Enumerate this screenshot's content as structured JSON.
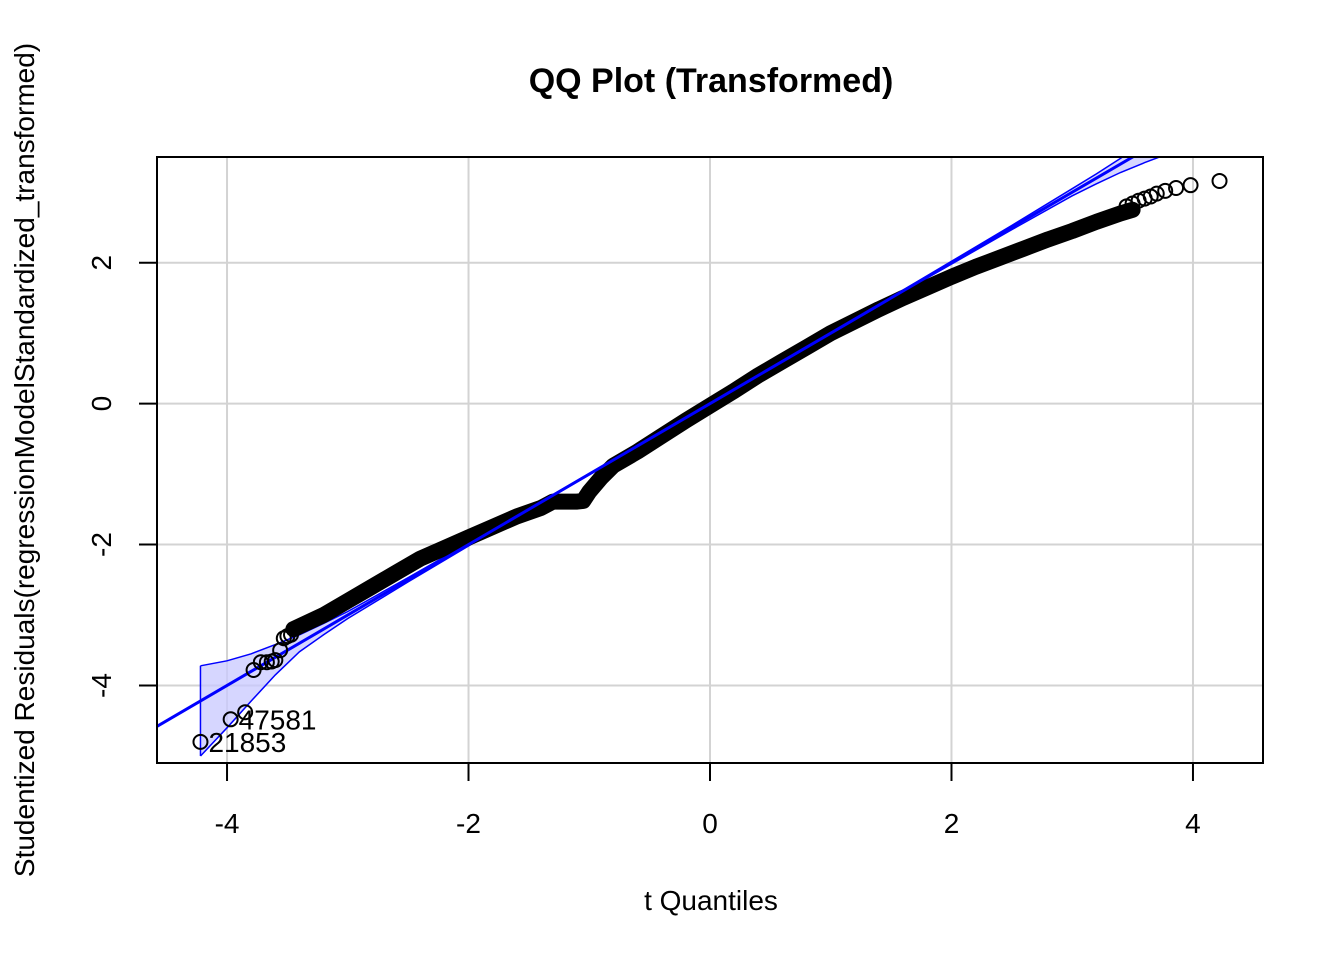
{
  "chart_data": {
    "type": "scatter",
    "title": "QQ Plot (Transformed)",
    "xlabel": "t Quantiles",
    "ylabel": "Studentized Residuals(regressionModelStandardized_transformed)",
    "xlim": [
      -4.58,
      4.58
    ],
    "ylim": [
      -5.1,
      3.5
    ],
    "xticks": [
      -4,
      -2,
      0,
      2,
      4
    ],
    "yticks": [
      -4,
      -2,
      0,
      2
    ],
    "grid": true,
    "reference_line": {
      "intercept": 0.0,
      "slope": 1.0
    },
    "confidence_band": {
      "x": [
        -4.22,
        -4.0,
        -3.8,
        -3.6,
        -3.4,
        -3.2,
        -3.0,
        -2.5,
        -2.0,
        -1.5,
        -1.0,
        -0.5,
        0.0,
        0.5,
        1.0,
        1.5,
        2.0,
        2.5,
        3.0,
        3.2,
        3.4,
        3.6,
        3.8
      ],
      "upper": [
        -3.72,
        -3.65,
        -3.55,
        -3.42,
        -3.28,
        -3.12,
        -2.95,
        -2.47,
        -1.98,
        -1.49,
        -0.99,
        -0.49,
        0.01,
        0.51,
        1.01,
        1.51,
        2.02,
        2.53,
        3.05,
        3.26,
        3.48,
        3.72,
        3.98
      ],
      "lower": [
        -5.0,
        -4.6,
        -4.22,
        -3.85,
        -3.52,
        -3.28,
        -3.05,
        -2.53,
        -2.02,
        -1.51,
        -1.01,
        -0.51,
        -0.01,
        0.49,
        0.99,
        1.49,
        1.98,
        2.47,
        2.95,
        3.12,
        3.28,
        3.42,
        3.55
      ]
    },
    "dense_curve": {
      "x": [
        -3.45,
        -3.2,
        -3.0,
        -2.8,
        -2.6,
        -2.4,
        -2.2,
        -2.0,
        -1.8,
        -1.6,
        -1.4,
        -1.3,
        -1.2,
        -1.1,
        -1.05,
        -1.0,
        -0.9,
        -0.8,
        -0.6,
        -0.4,
        -0.2,
        0.0,
        0.2,
        0.4,
        0.6,
        0.8,
        1.0,
        1.2,
        1.4,
        1.6,
        1.8,
        2.0,
        2.2,
        2.4,
        2.6,
        2.8,
        3.0,
        3.2,
        3.4,
        3.5
      ],
      "y": [
        -3.2,
        -3.0,
        -2.8,
        -2.6,
        -2.4,
        -2.2,
        -2.05,
        -1.9,
        -1.75,
        -1.6,
        -1.48,
        -1.39,
        -1.39,
        -1.39,
        -1.38,
        -1.25,
        -1.05,
        -0.88,
        -0.68,
        -0.46,
        -0.24,
        -0.03,
        0.18,
        0.4,
        0.6,
        0.8,
        1.0,
        1.17,
        1.34,
        1.5,
        1.65,
        1.8,
        1.94,
        2.07,
        2.2,
        2.33,
        2.45,
        2.58,
        2.7,
        2.75
      ]
    },
    "outlier_points": [
      {
        "x": -4.22,
        "y": -4.8
      },
      {
        "x": -3.97,
        "y": -4.48
      },
      {
        "x": -3.85,
        "y": -4.38
      },
      {
        "x": -3.78,
        "y": -3.78
      },
      {
        "x": -3.72,
        "y": -3.67
      },
      {
        "x": -3.67,
        "y": -3.67
      },
      {
        "x": -3.63,
        "y": -3.66
      },
      {
        "x": -3.6,
        "y": -3.64
      },
      {
        "x": -3.56,
        "y": -3.5
      },
      {
        "x": -3.53,
        "y": -3.33
      },
      {
        "x": -3.5,
        "y": -3.3
      },
      {
        "x": -3.47,
        "y": -3.28
      },
      {
        "x": 3.45,
        "y": 2.8
      },
      {
        "x": 3.5,
        "y": 2.84
      },
      {
        "x": 3.55,
        "y": 2.88
      },
      {
        "x": 3.6,
        "y": 2.91
      },
      {
        "x": 3.65,
        "y": 2.94
      },
      {
        "x": 3.7,
        "y": 2.98
      },
      {
        "x": 3.77,
        "y": 3.02
      },
      {
        "x": 3.86,
        "y": 3.06
      },
      {
        "x": 3.98,
        "y": 3.1
      },
      {
        "x": 4.22,
        "y": 3.16
      }
    ],
    "point_labels": [
      {
        "text": "47581",
        "x": -3.97,
        "y": -4.48
      },
      {
        "text": "21853",
        "x": -4.22,
        "y": -4.8
      }
    ],
    "colors": {
      "points": "#000000",
      "reference_line": "#0000ff",
      "band_fill": "#c8c8ff",
      "band_stroke": "#0000ff",
      "grid": "#d3d3d3"
    }
  }
}
